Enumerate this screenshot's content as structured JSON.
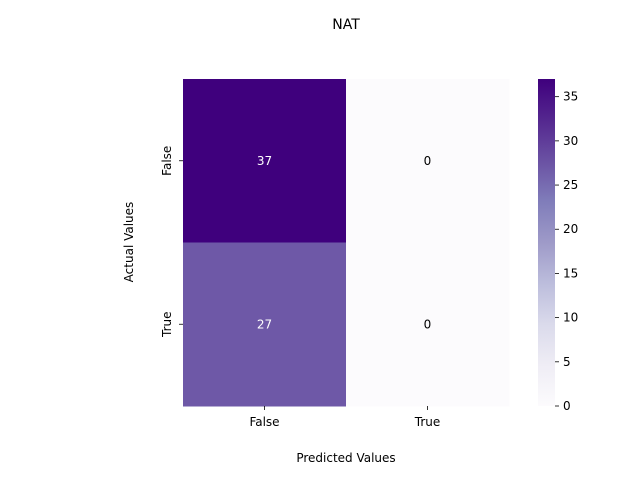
{
  "chart_data": {
    "type": "heatmap",
    "title": "NAT",
    "xlabel": "Predicted Values",
    "ylabel": "Actual Values",
    "x_categories": [
      "False",
      "True"
    ],
    "y_categories": [
      "False",
      "True"
    ],
    "values": [
      [
        37,
        0
      ],
      [
        27,
        0
      ]
    ],
    "colormap": "Purples",
    "colorbar": {
      "range": [
        0,
        37
      ],
      "ticks": [
        "0",
        "5",
        "10",
        "15",
        "20",
        "25",
        "30",
        "35"
      ],
      "low_color": "#fcfbfd",
      "high_color": "#3f007d"
    },
    "annotations_on": true,
    "grid": false
  }
}
